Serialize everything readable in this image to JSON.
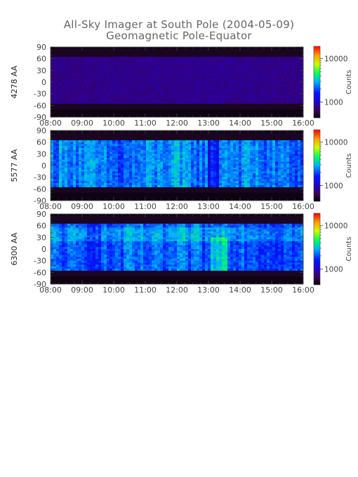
{
  "figure": {
    "title": "All-Sky Imager at South Pole (2004-05-09)",
    "subtitle": "Geomagnetic Pole-Equator"
  },
  "chart_data": [
    {
      "type": "heatmap",
      "ylabel": "4278 AA",
      "x_ticks": [
        "08:00",
        "09:00",
        "10:00",
        "11:00",
        "12:00",
        "13:00",
        "14:00",
        "15:00",
        "16:00"
      ],
      "y_ticks": [
        90,
        60,
        30,
        0,
        -30,
        -60,
        -90
      ],
      "ylim": [
        -90,
        90
      ],
      "data_lat_range": [
        -55,
        65
      ],
      "colorbar": {
        "label": "Counts",
        "tick_labels": [
          "10000",
          "1000"
        ],
        "scale": "log"
      },
      "intensity_level": "low",
      "intensity_profile": [
        0.06,
        0.06,
        0.07,
        0.07,
        0.08,
        0.07,
        0.08,
        0.09,
        0.08,
        0.09,
        0.08,
        0.09,
        0.1,
        0.11,
        0.1,
        0.09,
        0.1,
        0.11,
        0.12,
        0.11,
        0.12,
        0.13,
        0.11,
        0.1,
        0.1,
        0.09,
        0.09,
        0.08,
        0.08,
        0.07,
        0.07,
        0.07
      ]
    },
    {
      "type": "heatmap",
      "ylabel": "5577 AA",
      "x_ticks": [
        "08:00",
        "09:00",
        "10:00",
        "11:00",
        "12:00",
        "13:00",
        "14:00",
        "15:00",
        "16:00"
      ],
      "y_ticks": [
        90,
        60,
        30,
        0,
        -30,
        -60,
        -90
      ],
      "ylim": [
        -90,
        90
      ],
      "data_lat_range": [
        -55,
        65
      ],
      "colorbar": {
        "label": "Counts",
        "tick_labels": [
          "10000",
          "1000"
        ],
        "scale": "log"
      },
      "intensity_level": "medium",
      "intensity_profile": [
        0.36,
        0.4,
        0.43,
        0.4,
        0.38,
        0.37,
        0.33,
        0.3,
        0.28,
        0.3,
        0.33,
        0.36,
        0.38,
        0.4,
        0.42,
        0.44,
        0.4,
        0.38,
        0.36,
        0.34,
        0.38,
        0.42,
        0.44,
        0.4,
        0.38,
        0.4,
        0.37,
        0.34,
        0.33,
        0.32,
        0.31,
        0.3
      ]
    },
    {
      "type": "heatmap",
      "ylabel": "6300 AA",
      "x_ticks": [
        "08:00",
        "09:00",
        "10:00",
        "11:00",
        "12:00",
        "13:00",
        "14:00",
        "15:00",
        "16:00"
      ],
      "y_ticks": [
        90,
        60,
        30,
        0,
        -30,
        -60,
        -90
      ],
      "ylim": [
        -90,
        90
      ],
      "data_lat_range": [
        -55,
        65
      ],
      "colorbar": {
        "label": "Counts",
        "tick_labels": [
          "10000",
          "1000"
        ],
        "scale": "log"
      },
      "intensity_level": "medium",
      "intensity_profile": [
        0.3,
        0.28,
        0.26,
        0.25,
        0.24,
        0.23,
        0.25,
        0.26,
        0.28,
        0.3,
        0.31,
        0.3,
        0.28,
        0.27,
        0.28,
        0.3,
        0.32,
        0.31,
        0.3,
        0.28,
        0.36,
        0.4,
        0.38,
        0.35,
        0.32,
        0.3,
        0.28,
        0.27,
        0.26,
        0.26,
        0.25,
        0.24
      ]
    }
  ]
}
